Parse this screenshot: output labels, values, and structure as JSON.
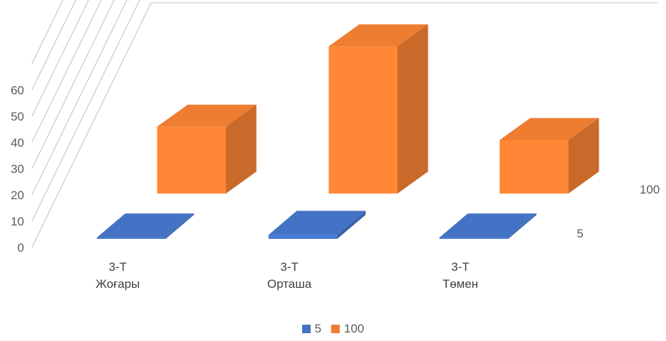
{
  "chart_data": {
    "type": "bar",
    "subtype": "3d-column",
    "categories": [
      [
        "3-Т",
        "Жоғары"
      ],
      [
        "3-Т",
        "Орташа"
      ],
      [
        "3-Т",
        "Төмен"
      ]
    ],
    "series": [
      {
        "name": "5",
        "values": [
          0.5,
          1.5,
          0.5
        ],
        "color": "#4472c4"
      },
      {
        "name": "100",
        "values": [
          25,
          55,
          20
        ],
        "color": "#ed7d31"
      }
    ],
    "yticks": [
      "0",
      "10",
      "20",
      "30",
      "40",
      "50",
      "60"
    ],
    "ylim": [
      0,
      60
    ],
    "grid": true,
    "legend_position": "bottom"
  }
}
